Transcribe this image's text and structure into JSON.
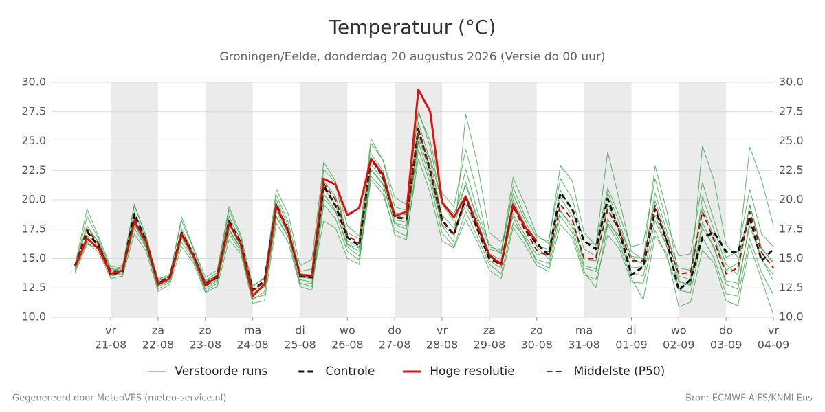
{
  "chart_data": {
    "type": "line",
    "title": "Temperatuur (°C)",
    "subtitle": "Groningen/Eelde, donderdag 20 augustus 2026 (Versie do 00 uur)",
    "x": [
      0.25,
      0.5,
      0.75,
      1,
      1.25,
      1.5,
      1.75,
      2,
      2.25,
      2.5,
      2.75,
      3,
      3.25,
      3.5,
      3.75,
      4,
      4.25,
      4.5,
      4.75,
      5,
      5.25,
      5.5,
      5.75,
      6,
      6.25,
      6.5,
      6.75,
      7,
      7.25,
      7.5,
      7.75,
      8,
      8.25,
      8.5,
      8.75,
      9,
      9.25,
      9.5,
      9.75,
      10,
      10.25,
      10.5,
      10.75,
      11,
      11.25,
      11.5,
      11.75,
      12,
      12.25,
      12.5,
      12.75,
      13,
      13.25,
      13.5,
      13.75,
      14,
      14.25,
      14.5,
      14.75,
      15
    ],
    "xlim": [
      -0.25,
      15
    ],
    "xticks": [
      {
        "value": 1,
        "label": "vr"
      },
      {
        "value": 2,
        "label": "za"
      },
      {
        "value": 3,
        "label": "zo"
      },
      {
        "value": 4,
        "label": "ma"
      },
      {
        "value": 5,
        "label": "di"
      },
      {
        "value": 6,
        "label": "wo"
      },
      {
        "value": 7,
        "label": "do"
      },
      {
        "value": 8,
        "label": "vr"
      },
      {
        "value": 9,
        "label": "za"
      },
      {
        "value": 10,
        "label": "zo"
      },
      {
        "value": 11,
        "label": "ma"
      },
      {
        "value": 12,
        "label": "di"
      },
      {
        "value": 13,
        "label": "wo"
      },
      {
        "value": 14,
        "label": "do"
      },
      {
        "value": 15,
        "label": "vr"
      }
    ],
    "xtick_dates": [
      "21-08",
      "22-08",
      "23-08",
      "24-08",
      "25-08",
      "26-08",
      "27-08",
      "28-08",
      "29-08",
      "30-08",
      "31-08",
      "01-09",
      "02-09",
      "03-09",
      "04-09"
    ],
    "shade_alternate_days": true,
    "ylim": [
      10,
      30
    ],
    "yticks": [
      {
        "value": 10,
        "label": "10.0"
      },
      {
        "value": 12.5,
        "label": "12.5"
      },
      {
        "value": 15,
        "label": "15.0"
      },
      {
        "value": 17.5,
        "label": "17.5"
      },
      {
        "value": 20,
        "label": "20.0"
      },
      {
        "value": 22.5,
        "label": "22.5"
      },
      {
        "value": 25,
        "label": "25.0"
      },
      {
        "value": 27.5,
        "label": "27.5"
      },
      {
        "value": 30,
        "label": "30.0"
      }
    ],
    "mirror_y_axis": true,
    "grid": true,
    "legend": "bottom",
    "ensemble": {
      "name": "Verstoorde runs",
      "color": "#2e9e3e",
      "members": [
        [
          14.2,
          18.6,
          16.6,
          14.1,
          14.3,
          19.5,
          16.9,
          13.2,
          13.7,
          18.2,
          15.8,
          13.1,
          13.8,
          19.1,
          16.8,
          12.0,
          12.8,
          20.4,
          18.1,
          13.9,
          14.1,
          22.6,
          21.5,
          17.8,
          16.9,
          25.2,
          23.4,
          19.4,
          19.1,
          27.6,
          24.5,
          19.6,
          18.2,
          22.6,
          19.0,
          16.2,
          15.4,
          21.1,
          18.6,
          16.8,
          16.5,
          21.8,
          20.1,
          16.4,
          16.2,
          21.0,
          18.6,
          16.0,
          16.3,
          21.8,
          18.0,
          15.2,
          15.4,
          21.5,
          18.2,
          15.1,
          15.6,
          20.9,
          17.1,
          16.0
        ],
        [
          14.0,
          16.4,
          15.5,
          13.3,
          13.5,
          17.1,
          15.6,
          12.2,
          12.8,
          16.0,
          14.6,
          12.1,
          12.6,
          16.6,
          15.4,
          11.2,
          11.4,
          18.0,
          16.4,
          12.6,
          12.3,
          19.6,
          18.4,
          15.6,
          14.9,
          21.7,
          20.5,
          17.4,
          16.9,
          23.5,
          20.6,
          16.5,
          15.9,
          18.3,
          16.4,
          14.0,
          13.3,
          17.6,
          16.2,
          14.4,
          13.9,
          17.9,
          16.8,
          13.6,
          13.2,
          17.0,
          15.8,
          13.0,
          12.9,
          17.4,
          15.1,
          12.3,
          12.1,
          16.8,
          15.0,
          12.0,
          11.8,
          16.7,
          13.8,
          11.9
        ],
        [
          14.5,
          19.2,
          16.8,
          14.3,
          14.4,
          19.6,
          16.8,
          12.9,
          13.6,
          18.5,
          15.9,
          13.4,
          14.0,
          19.4,
          17.0,
          12.7,
          13.3,
          20.9,
          18.8,
          14.4,
          14.9,
          23.2,
          21.6,
          16.2,
          15.9,
          24.8,
          23.4,
          20.2,
          19.6,
          27.4,
          25.0,
          20.6,
          19.4,
          24.3,
          20.5,
          15.8,
          15.5,
          21.9,
          19.6,
          17.0,
          16.3,
          22.9,
          21.6,
          17.2,
          16.1,
          24.1,
          19.9,
          15.6,
          14.9,
          22.9,
          19.0,
          13.5,
          13.2,
          24.6,
          21.6,
          16.2,
          15.1,
          24.5,
          21.7,
          17.8
        ],
        [
          13.8,
          16.2,
          15.9,
          13.6,
          13.8,
          17.9,
          16.0,
          12.4,
          13.0,
          16.7,
          15.0,
          12.2,
          12.9,
          17.4,
          15.8,
          11.6,
          11.9,
          18.6,
          16.9,
          12.9,
          12.6,
          20.1,
          19.0,
          16.2,
          15.6,
          22.5,
          21.3,
          17.9,
          17.5,
          24.9,
          21.8,
          17.8,
          16.4,
          27.3,
          23.0,
          17.2,
          16.4,
          18.5,
          16.6,
          14.9,
          14.6,
          19.1,
          17.6,
          14.2,
          13.9,
          18.4,
          16.5,
          13.8,
          13.5,
          18.2,
          16.0,
          13.0,
          12.8,
          18.1,
          15.8,
          13.1,
          12.9,
          17.8,
          14.9,
          13.6
        ],
        [
          14.6,
          17.8,
          16.3,
          14.0,
          14.2,
          18.9,
          16.6,
          13.3,
          13.5,
          17.5,
          15.5,
          13.0,
          13.6,
          18.6,
          16.5,
          12.6,
          13.4,
          20.0,
          17.8,
          13.2,
          13.0,
          18.2,
          17.6,
          15.0,
          14.5,
          22.6,
          21.4,
          18.0,
          17.8,
          25.0,
          23.6,
          19.8,
          18.8,
          21.2,
          18.5,
          16.0,
          15.7,
          20.5,
          18.3,
          16.1,
          15.8,
          20.8,
          19.1,
          15.8,
          15.2,
          20.6,
          18.0,
          15.1,
          14.5,
          20.6,
          17.3,
          13.1,
          12.7,
          20.3,
          17.4,
          14.5,
          13.6,
          19.6,
          15.9,
          14.6
        ],
        [
          14.3,
          17.0,
          16.0,
          13.7,
          13.9,
          18.0,
          16.1,
          12.7,
          13.2,
          16.9,
          15.1,
          12.6,
          13.2,
          17.5,
          15.9,
          11.9,
          12.6,
          19.0,
          17.1,
          13.4,
          13.3,
          21.0,
          19.6,
          16.5,
          16.0,
          23.0,
          21.7,
          18.3,
          18.1,
          25.4,
          22.2,
          17.9,
          17.0,
          19.6,
          17.3,
          14.8,
          14.2,
          18.8,
          17.0,
          15.3,
          15.6,
          20.2,
          18.6,
          14.4,
          14.1,
          18.0,
          16.9,
          14.2,
          14.3,
          18.7,
          16.0,
          12.6,
          12.9,
          17.6,
          16.0,
          12.8,
          12.4,
          18.2,
          15.0,
          13.1
        ],
        [
          14.4,
          17.6,
          16.4,
          13.9,
          14.2,
          18.3,
          16.4,
          13.1,
          13.5,
          17.2,
          15.3,
          13.0,
          13.6,
          18.1,
          16.3,
          12.2,
          12.9,
          19.4,
          17.4,
          13.7,
          13.6,
          21.6,
          20.3,
          17.2,
          16.7,
          23.9,
          22.5,
          18.9,
          18.7,
          26.6,
          23.3,
          18.7,
          17.6,
          21.5,
          18.2,
          15.4,
          14.9,
          20.0,
          17.9,
          16.0,
          15.0,
          19.0,
          17.9,
          14.9,
          14.8,
          19.6,
          17.6,
          15.2,
          15.0,
          19.9,
          16.9,
          14.2,
          14.0,
          19.4,
          16.8,
          14.0,
          14.6,
          19.5,
          15.8,
          14.7
        ],
        [
          14.1,
          16.9,
          15.8,
          13.5,
          13.7,
          17.6,
          15.9,
          12.6,
          13.1,
          16.4,
          14.8,
          12.4,
          13.1,
          17.1,
          15.6,
          11.5,
          12.2,
          18.5,
          16.8,
          12.8,
          12.9,
          20.5,
          19.1,
          16.0,
          15.2,
          22.0,
          20.9,
          17.0,
          16.6,
          24.3,
          21.4,
          17.2,
          16.0,
          19.0,
          16.8,
          14.5,
          13.7,
          18.0,
          16.8,
          14.7,
          14.2,
          18.6,
          17.2,
          13.9,
          12.5,
          17.9,
          16.2,
          13.3,
          11.5,
          16.9,
          15.4,
          10.9,
          11.3,
          15.7,
          14.6,
          11.4,
          11.0,
          16.1,
          13.2,
          10.2
        ]
      ]
    },
    "series": [
      {
        "name": "Controle",
        "color": "#111111",
        "dash": true,
        "width": 3,
        "values": [
          14.4,
          17.3,
          16.0,
          13.6,
          13.9,
          18.8,
          16.5,
          12.9,
          13.4,
          17.2,
          15.3,
          12.7,
          13.4,
          18.2,
          16.3,
          12.3,
          13.1,
          19.6,
          17.4,
          13.5,
          13.4,
          21.2,
          19.5,
          16.8,
          16.1,
          23.5,
          22.0,
          18.5,
          18.4,
          26.0,
          22.5,
          18.3,
          17.0,
          20.2,
          17.5,
          15.0,
          14.5,
          19.5,
          17.5,
          16.3,
          15.3,
          20.6,
          19.2,
          16.5,
          15.8,
          20.1,
          17.3,
          13.6,
          14.3,
          19.2,
          16.5,
          12.3,
          13.2,
          16.8,
          17.2,
          15.6,
          15.5,
          18.5,
          14.8,
          15.8
        ]
      },
      {
        "name": "Hoge resolutie",
        "color": "#e0120f",
        "dash": false,
        "width": 3,
        "values": [
          14.3,
          16.7,
          15.8,
          13.7,
          14.0,
          18.2,
          16.4,
          12.8,
          13.3,
          17.1,
          15.2,
          12.7,
          13.5,
          18.0,
          16.2,
          11.8,
          12.8,
          19.5,
          17.3,
          13.6,
          13.5,
          21.8,
          21.3,
          18.7,
          19.3,
          23.5,
          22.2,
          18.6,
          19.0,
          29.4,
          27.5,
          19.8,
          18.5,
          20.3,
          17.8,
          15.3,
          14.5,
          19.6,
          17.7,
          16.5,
          null,
          null,
          null,
          null,
          null,
          null,
          null,
          null,
          null,
          null,
          null,
          null,
          null,
          null,
          null,
          null,
          null,
          null,
          null,
          null
        ]
      },
      {
        "name": "Middelste (P50)",
        "color": "#a01010",
        "dash": true,
        "width": 2,
        "values": [
          14.4,
          17.5,
          16.2,
          13.9,
          14.0,
          18.4,
          16.3,
          13.0,
          13.4,
          17.0,
          15.3,
          12.9,
          13.5,
          17.9,
          16.2,
          12.3,
          13.0,
          19.3,
          17.3,
          13.6,
          13.5,
          21.4,
          20.0,
          17.0,
          16.3,
          23.4,
          22.0,
          18.6,
          18.4,
          26.0,
          22.6,
          18.2,
          17.1,
          20.2,
          17.7,
          15.2,
          14.6,
          19.4,
          17.5,
          15.7,
          15.2,
          19.6,
          18.3,
          15.0,
          15.0,
          19.2,
          17.3,
          14.8,
          14.8,
          19.5,
          16.5,
          13.7,
          13.8,
          19.0,
          16.5,
          13.7,
          14.2,
          19.0,
          15.5,
          14.2
        ]
      }
    ],
    "footer": {
      "left": "Gegenereerd door MeteoVPS (meteo-service.nl)",
      "right": "Bron: ECMWF AIFS/KNMI Ens"
    }
  }
}
